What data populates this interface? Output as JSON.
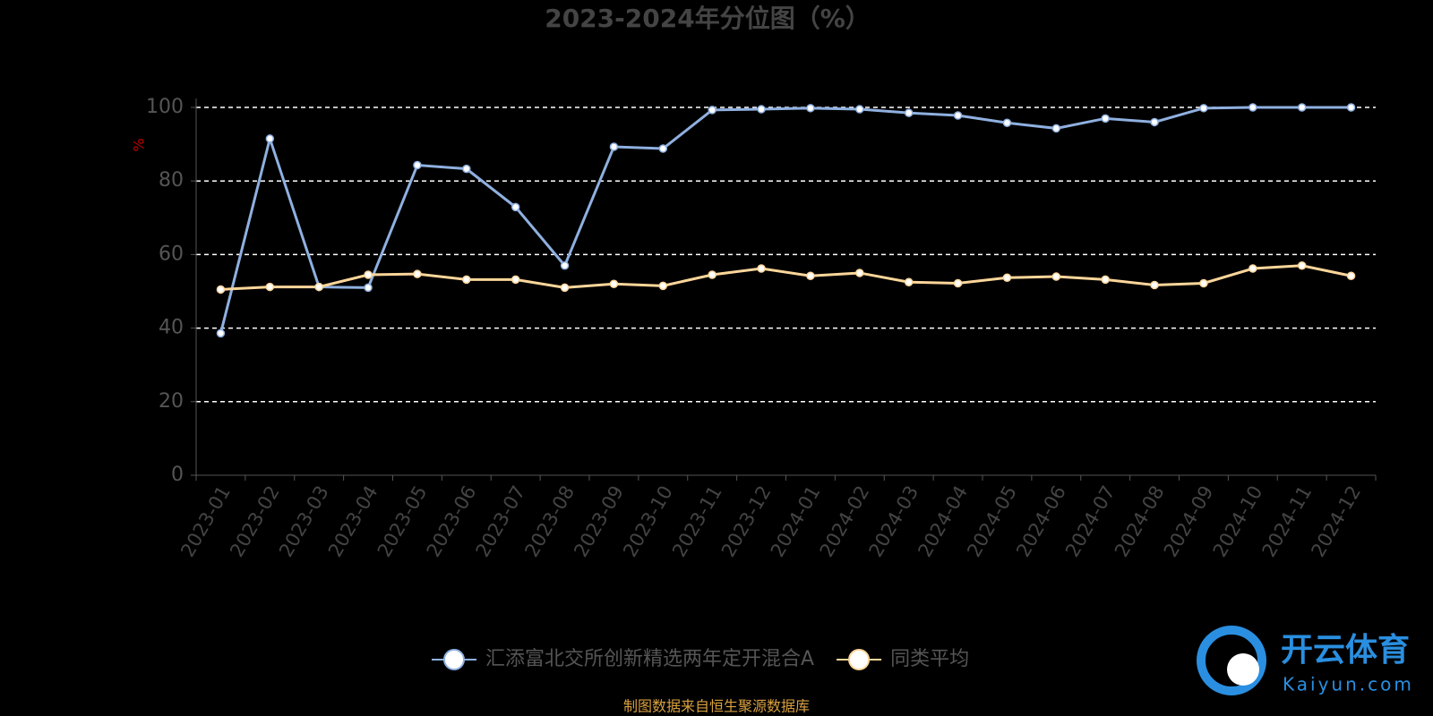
{
  "chart_data": {
    "type": "line",
    "title": "2023-2024年分位图（%）",
    "y_label": "%",
    "categories": [
      "2023-01",
      "2023-02",
      "2023-03",
      "2023-04",
      "2023-05",
      "2023-06",
      "2023-07",
      "2023-08",
      "2023-09",
      "2023-10",
      "2023-11",
      "2023-12",
      "2024-01",
      "2024-02",
      "2024-03",
      "2024-04",
      "2024-05",
      "2024-06",
      "2024-07",
      "2024-08",
      "2024-09",
      "2024-10",
      "2024-11",
      "2024-12"
    ],
    "series": [
      {
        "name": "汇添富北交所创新精选两年定开混合A",
        "color": "#8fb0e0",
        "values": [
          38.6,
          91.5,
          51.2,
          51.0,
          84.3,
          83.3,
          72.9,
          57.0,
          89.3,
          88.8,
          99.3,
          99.5,
          99.8,
          99.5,
          98.5,
          97.8,
          95.8,
          94.3,
          97.0,
          96.0,
          99.8,
          100,
          100,
          100
        ]
      },
      {
        "name": "同类平均",
        "color": "#fdd69a",
        "values": [
          50.5,
          51.2,
          51.2,
          54.5,
          54.7,
          53.2,
          53.2,
          51.0,
          52.0,
          51.5,
          54.5,
          56.2,
          54.2,
          55.0,
          52.5,
          52.2,
          53.7,
          54.0,
          53.2,
          51.7,
          52.2,
          56.2,
          57.0,
          54.2
        ]
      }
    ],
    "ylim": [
      0,
      100
    ],
    "yticks": [
      0,
      20,
      40,
      60,
      80,
      100
    ],
    "grid": true,
    "source": "制图数据来自恒生聚源数据库",
    "watermark": {
      "brand": "开云体育",
      "site": "Kaiyun.com"
    }
  }
}
